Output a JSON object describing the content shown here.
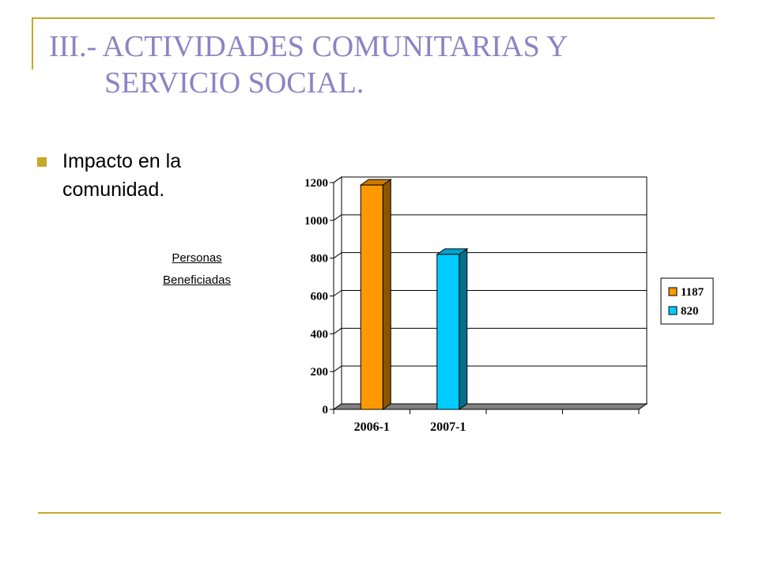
{
  "colors": {
    "accent_rule": "#c7a92a",
    "title": "#8b84c4",
    "bullet": "#c7a92a"
  },
  "slide": {
    "title_line1": "III.- ACTIVIDADES COMUNITARIAS Y",
    "title_line2": "SERVICIO SOCIAL.",
    "bullet_text": "Impacto en la comunidad.",
    "caption_line1": "Personas",
    "caption_line2": "Beneficiadas"
  },
  "chart_data": {
    "type": "bar",
    "style": "3d",
    "categories": [
      "2006-1",
      "2007-1"
    ],
    "category_slots": 4,
    "values": [
      1187,
      820
    ],
    "bar_colors": [
      "#ff9900",
      "#00ccff"
    ],
    "legend": [
      {
        "label": "1187",
        "color": "#ff9900"
      },
      {
        "label": "820",
        "color": "#00ccff"
      }
    ],
    "legend_position": "right",
    "ylim": [
      0,
      1200
    ],
    "yticks": [
      0,
      200,
      400,
      600,
      800,
      1000,
      1200
    ],
    "grid": true,
    "title": "",
    "xlabel": "",
    "ylabel": ""
  }
}
